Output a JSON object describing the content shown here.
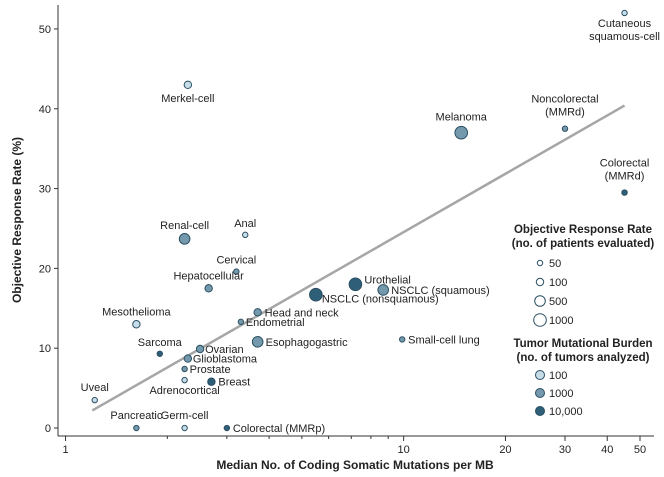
{
  "chart_data": {
    "type": "scatter",
    "title": "",
    "xlabel": "Median No. of Coding Somatic Mutations per MB",
    "ylabel": "Objective Response Rate (%)",
    "xscale": "log",
    "xlim": [
      0.95,
      55
    ],
    "ylim": [
      -1,
      53
    ],
    "xticks": [
      1,
      10,
      20,
      30,
      40,
      50
    ],
    "yticks": [
      0,
      10,
      20,
      30,
      40,
      50
    ],
    "grid": false,
    "colors": {
      "light": "#c6dde8",
      "medium": "#7499ad",
      "dark": "#2f5f78",
      "stroke": "#2b4f63",
      "fit": "#a6a6a6"
    },
    "points": [
      {
        "label": "Cutaneous squamous-cell",
        "x": 45,
        "y": 52,
        "size": 50,
        "burden": 100
      },
      {
        "label": "Merkel-cell",
        "x": 2.3,
        "y": 43,
        "size": 100,
        "burden": 100
      },
      {
        "label": "Melanoma",
        "x": 14.8,
        "y": 37,
        "size": 1000,
        "burden": 1000
      },
      {
        "label": "Noncolorectal (MMRd)",
        "x": 30,
        "y": 37.5,
        "size": 50,
        "burden": 1000
      },
      {
        "label": "Colorectal (MMRd)",
        "x": 45,
        "y": 29.5,
        "size": 50,
        "burden": 10000
      },
      {
        "label": "Renal-cell",
        "x": 2.25,
        "y": 23.7,
        "size": 500,
        "burden": 1000
      },
      {
        "label": "Anal",
        "x": 3.4,
        "y": 24.2,
        "size": 50,
        "burden": 100
      },
      {
        "label": "Cervical",
        "x": 3.2,
        "y": 19.6,
        "size": 50,
        "burden": 1000
      },
      {
        "label": "Hepatocellular",
        "x": 2.65,
        "y": 17.5,
        "size": 100,
        "burden": 1000
      },
      {
        "label": "Urothelial",
        "x": 7.2,
        "y": 18,
        "size": 1000,
        "burden": 10000
      },
      {
        "label": "NSCLC (squamous)",
        "x": 8.7,
        "y": 17.3,
        "size": 500,
        "burden": 1000
      },
      {
        "label": "NSCLC (nonsquamous)",
        "x": 5.5,
        "y": 16.7,
        "size": 1000,
        "burden": 10000
      },
      {
        "label": "Head and neck",
        "x": 3.7,
        "y": 14.5,
        "size": 100,
        "burden": 1000
      },
      {
        "label": "Endometrial",
        "x": 3.3,
        "y": 13.3,
        "size": 50,
        "burden": 1000
      },
      {
        "label": "Mesothelioma",
        "x": 1.62,
        "y": 13,
        "size": 100,
        "burden": 100
      },
      {
        "label": "Esophagogastric",
        "x": 3.7,
        "y": 10.8,
        "size": 500,
        "burden": 1000
      },
      {
        "label": "Small-cell lung",
        "x": 9.9,
        "y": 11.1,
        "size": 50,
        "burden": 1000
      },
      {
        "label": "Sarcoma",
        "x": 1.9,
        "y": 9.3,
        "size": 50,
        "burden": 10000
      },
      {
        "label": "Ovarian",
        "x": 2.5,
        "y": 9.9,
        "size": 100,
        "burden": 1000
      },
      {
        "label": "Glioblastoma",
        "x": 2.3,
        "y": 8.7,
        "size": 100,
        "burden": 1000
      },
      {
        "label": "Prostate",
        "x": 2.25,
        "y": 7.4,
        "size": 50,
        "burden": 1000
      },
      {
        "label": "Adrenocortical",
        "x": 2.25,
        "y": 6,
        "size": 50,
        "burden": 100
      },
      {
        "label": "Breast",
        "x": 2.7,
        "y": 5.8,
        "size": 100,
        "burden": 10000
      },
      {
        "label": "Uveal",
        "x": 1.22,
        "y": 3.5,
        "size": 50,
        "burden": 100
      },
      {
        "label": "Pancreatic",
        "x": 1.62,
        "y": 0,
        "size": 50,
        "burden": 1000
      },
      {
        "label": "Germ-cell",
        "x": 2.25,
        "y": 0,
        "size": 50,
        "burden": 100
      },
      {
        "label": "Colorectal (MMRp)",
        "x": 3.0,
        "y": 0,
        "size": 50,
        "burden": 10000
      }
    ],
    "fit_line": {
      "x": [
        1.2,
        45
      ],
      "y": [
        2.2,
        40.4
      ]
    },
    "legend": {
      "placement": "right",
      "size_title_1": "Objective Response Rate",
      "size_title_2": "(no. of patients evaluated)",
      "size_items": [
        {
          "label": "50",
          "value": 50
        },
        {
          "label": "100",
          "value": 100
        },
        {
          "label": "500",
          "value": 500
        },
        {
          "label": "1000",
          "value": 1000
        }
      ],
      "burden_title_1": "Tumor Mutational Burden",
      "burden_title_2": "(no. of tumors analyzed)",
      "burden_items": [
        {
          "label": "100",
          "value": 100
        },
        {
          "label": "1000",
          "value": 1000
        },
        {
          "label": "10,000",
          "value": 10000
        }
      ]
    }
  }
}
